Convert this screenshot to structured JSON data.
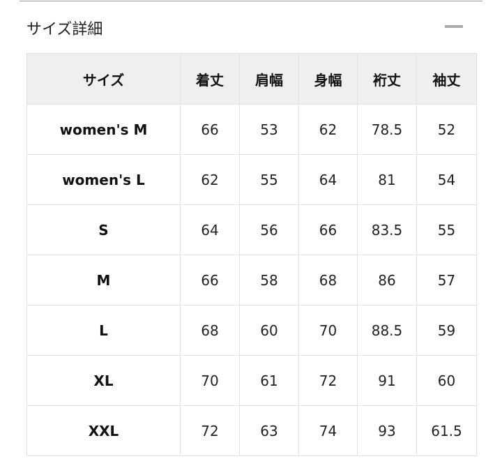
{
  "section": {
    "title": "サイズ詳細",
    "collapse_icon": "minus-icon"
  },
  "table": {
    "headers": [
      "サイズ",
      "着丈",
      "肩幅",
      "身幅",
      "裄丈",
      "袖丈"
    ],
    "rows": [
      [
        "women's M",
        "66",
        "53",
        "62",
        "78.5",
        "52"
      ],
      [
        "women's L",
        "62",
        "55",
        "64",
        "81",
        "54"
      ],
      [
        "S",
        "64",
        "56",
        "66",
        "83.5",
        "55"
      ],
      [
        "M",
        "66",
        "58",
        "68",
        "86",
        "57"
      ],
      [
        "L",
        "68",
        "60",
        "70",
        "88.5",
        "59"
      ],
      [
        "XL",
        "70",
        "61",
        "72",
        "91",
        "60"
      ],
      [
        "XXL",
        "72",
        "63",
        "74",
        "93",
        "61.5"
      ]
    ]
  }
}
